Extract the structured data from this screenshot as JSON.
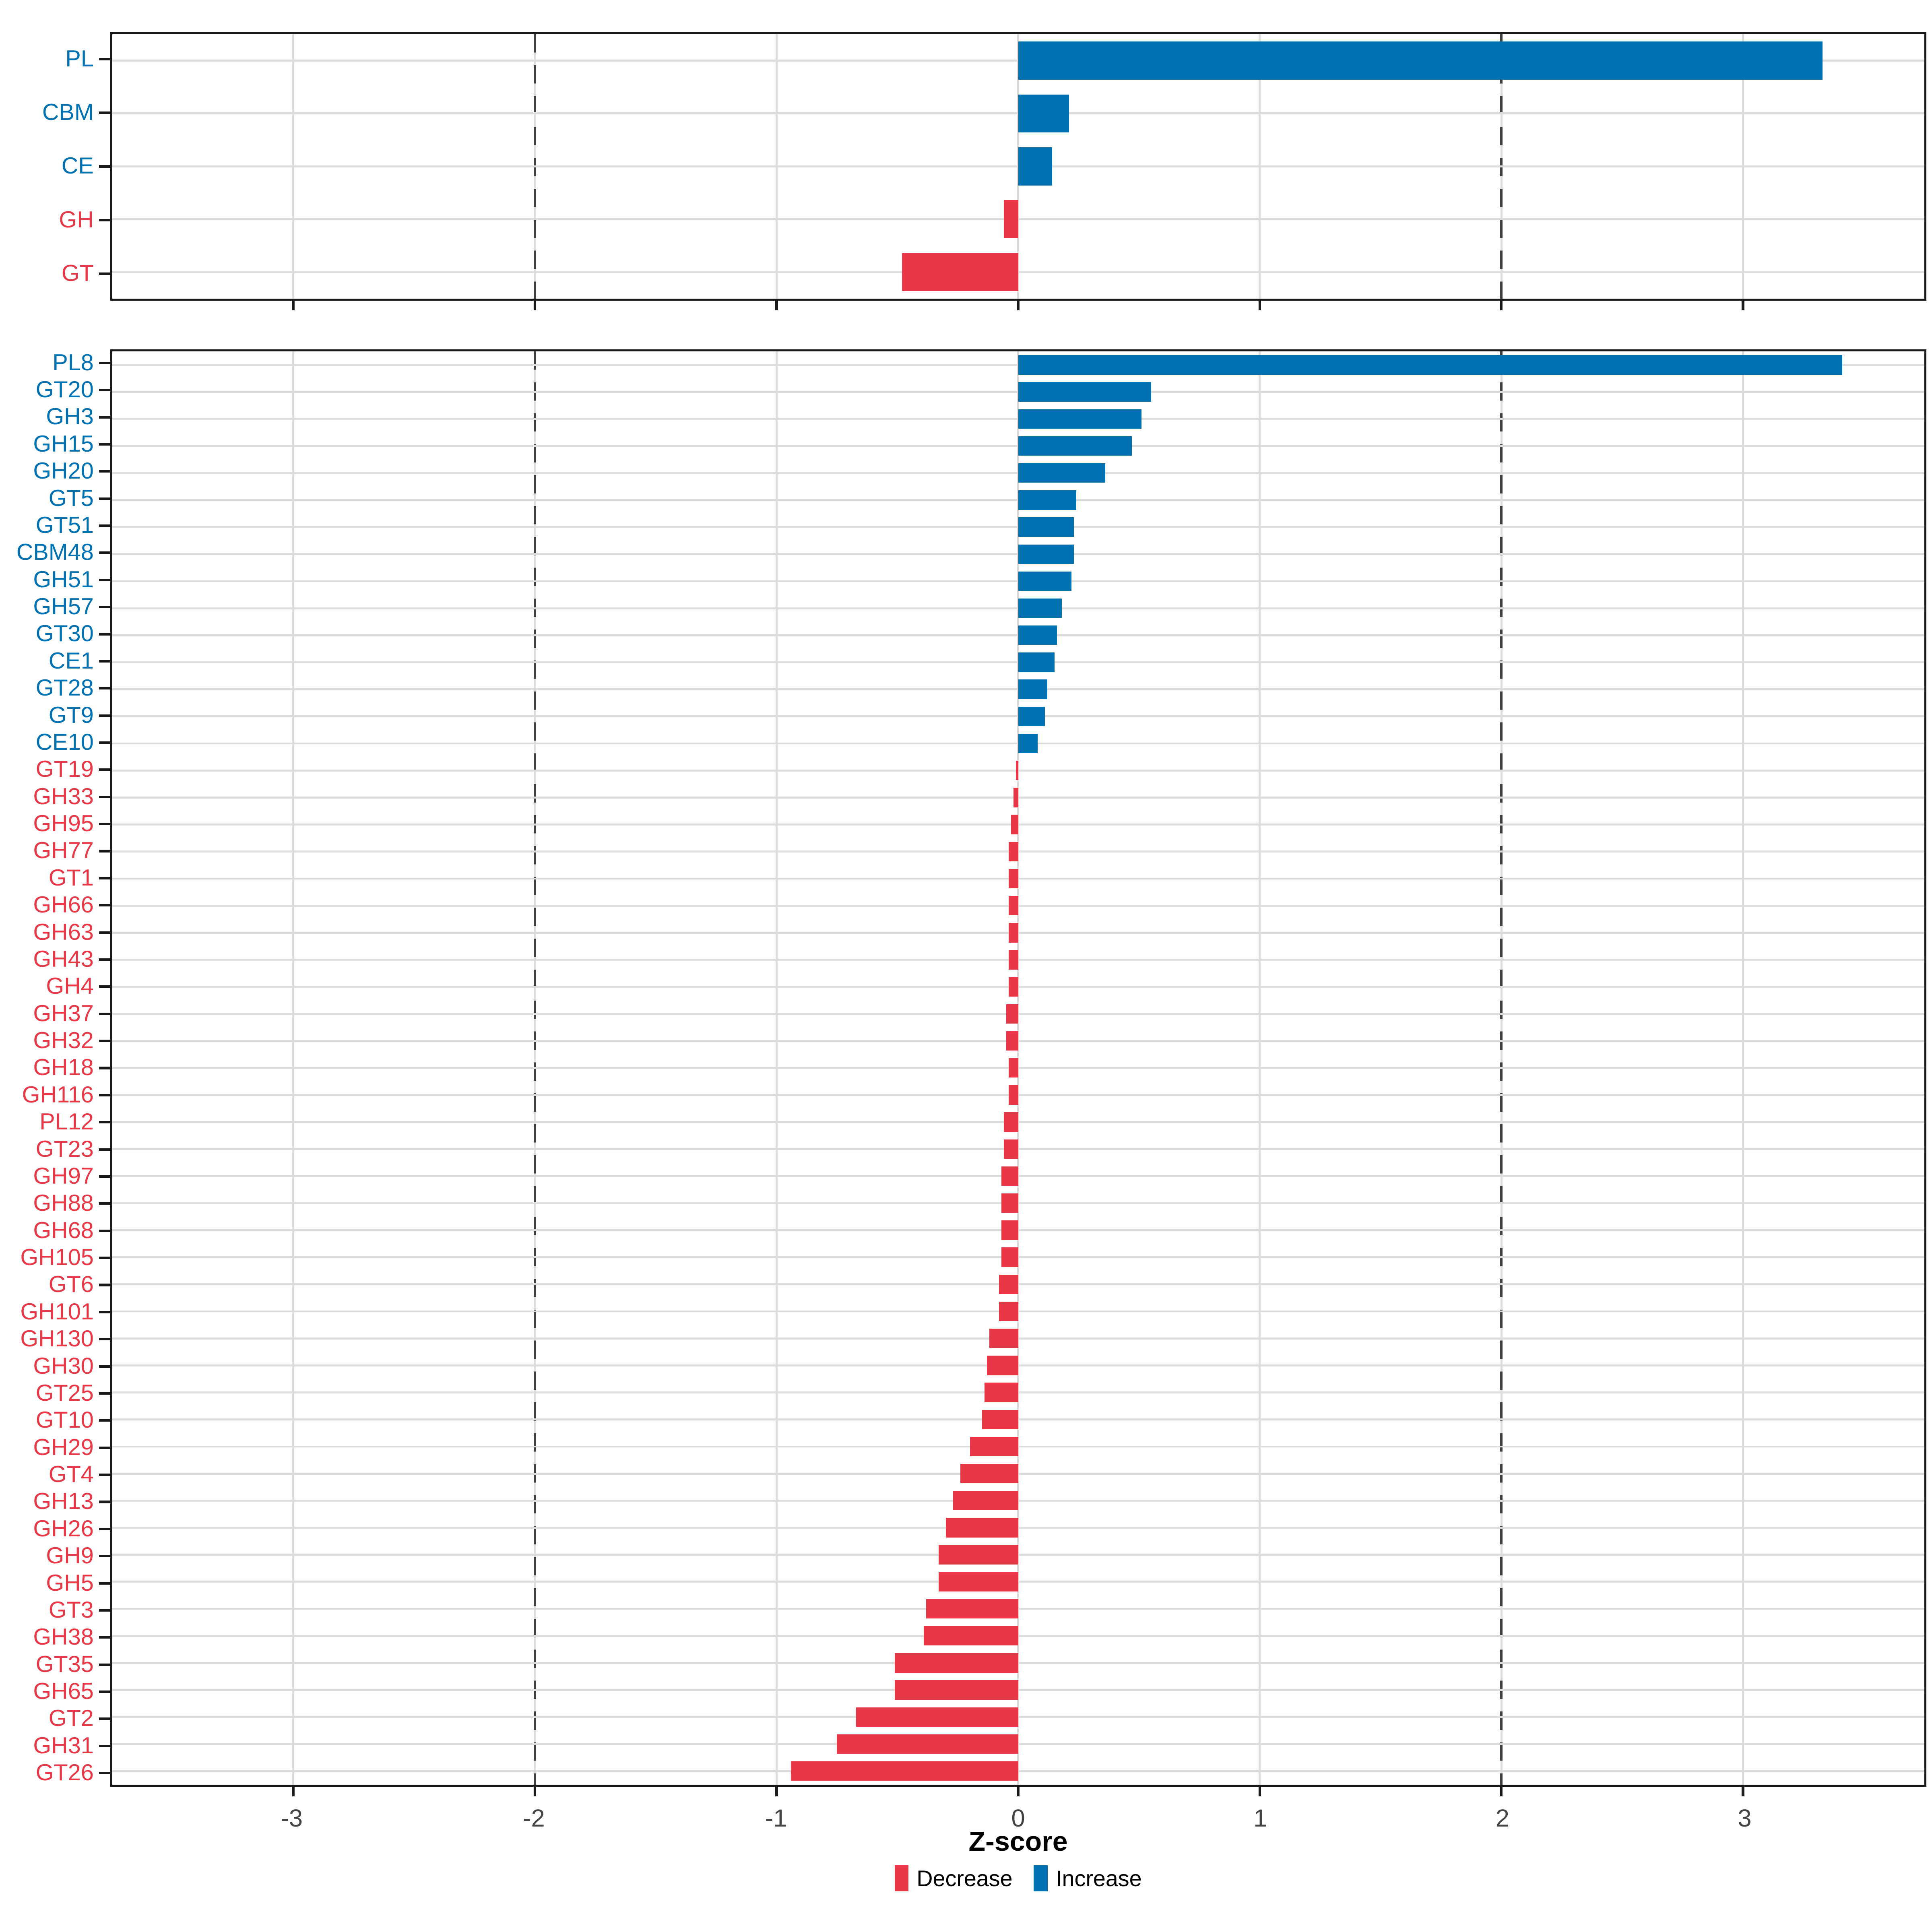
{
  "figure": {
    "background": "#FFFFFF"
  },
  "axis": {
    "xlabel": "Z-score",
    "xmin": -3.75,
    "xmax": 3.75,
    "ticks": [
      -3,
      -2,
      -1,
      0,
      1,
      2,
      3
    ],
    "tick_labels": [
      "-3",
      "-2",
      "-1",
      "0",
      "1",
      "2",
      "3"
    ],
    "dashed_reference_lines": [
      -2,
      2
    ],
    "grid": true,
    "grid_color": "#DCDCDC",
    "border_color": "#1A1A1A",
    "dash_color": "#404040",
    "tick_label_color": "#454545"
  },
  "colors": {
    "increase": "#0072B2",
    "decrease": "#E83848"
  },
  "legend": {
    "position": "bottom-center",
    "items": [
      {
        "label": "Decrease",
        "key": "decrease"
      },
      {
        "label": "Increase",
        "key": "increase"
      }
    ]
  },
  "chart_data": [
    {
      "type": "bar",
      "orientation": "horizontal",
      "panel": "top",
      "xlabel": "Z-score",
      "xlim": [
        -3.75,
        3.75
      ],
      "categories": [
        "PL",
        "CBM",
        "CE",
        "GH",
        "GT"
      ],
      "values": [
        3.33,
        0.21,
        0.14,
        -0.06,
        -0.48
      ]
    },
    {
      "type": "bar",
      "orientation": "horizontal",
      "panel": "bottom",
      "xlabel": "Z-score",
      "xlim": [
        -3.75,
        3.75
      ],
      "categories": [
        "PL8",
        "GT20",
        "GH3",
        "GH15",
        "GH20",
        "GT5",
        "GT51",
        "CBM48",
        "GH51",
        "GH57",
        "GT30",
        "CE1",
        "GT28",
        "GT9",
        "CE10",
        "GT19",
        "GH33",
        "GH95",
        "GH77",
        "GT1",
        "GH66",
        "GH63",
        "GH43",
        "GH4",
        "GH37",
        "GH32",
        "GH18",
        "GH116",
        "PL12",
        "GT23",
        "GH97",
        "GH88",
        "GH68",
        "GH105",
        "GT6",
        "GH101",
        "GH130",
        "GH30",
        "GT25",
        "GT10",
        "GH29",
        "GT4",
        "GH13",
        "GH26",
        "GH9",
        "GH5",
        "GT3",
        "GH38",
        "GT35",
        "GH65",
        "GT2",
        "GH31",
        "GT26"
      ],
      "values": [
        3.41,
        0.55,
        0.51,
        0.47,
        0.36,
        0.24,
        0.23,
        0.23,
        0.22,
        0.18,
        0.16,
        0.15,
        0.12,
        0.11,
        0.08,
        -0.01,
        -0.02,
        -0.03,
        -0.04,
        -0.04,
        -0.04,
        -0.04,
        -0.04,
        -0.04,
        -0.05,
        -0.05,
        -0.04,
        -0.04,
        -0.06,
        -0.06,
        -0.07,
        -0.07,
        -0.07,
        -0.07,
        -0.08,
        -0.08,
        -0.12,
        -0.13,
        -0.14,
        -0.15,
        -0.2,
        -0.24,
        -0.27,
        -0.3,
        -0.33,
        -0.33,
        -0.38,
        -0.39,
        -0.51,
        -0.51,
        -0.67,
        -0.75,
        -0.94
      ]
    }
  ]
}
